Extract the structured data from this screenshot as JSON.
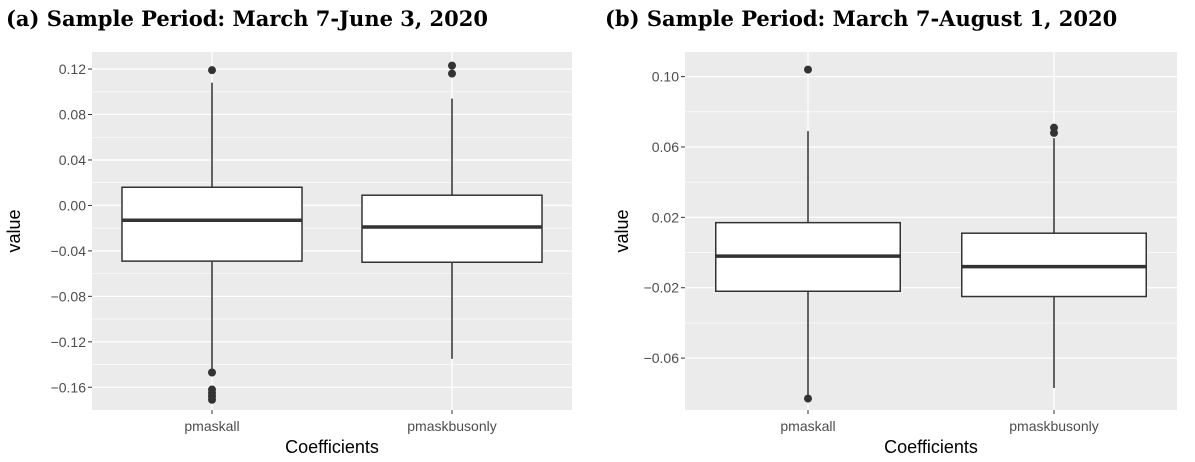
{
  "chart_data": [
    {
      "type": "box",
      "title": "(a) Sample Period: March 7-June 3, 2020",
      "xlabel": "Coefficients",
      "ylabel": "value",
      "ylim": [
        -0.18,
        0.135
      ],
      "yticks": [
        0.12,
        0.08,
        0.04,
        0.0,
        -0.04,
        -0.08,
        -0.12,
        -0.16
      ],
      "ytick_labels": [
        "0.12",
        "0.08",
        "0.04",
        "0.00",
        "−0.04",
        "−0.08",
        "−0.12",
        "−0.16"
      ],
      "categories": [
        "pmaskall",
        "pmaskbusonly"
      ],
      "boxes": [
        {
          "whisker_low": -0.145,
          "q1": -0.049,
          "median": -0.013,
          "q3": 0.016,
          "whisker_high": 0.108,
          "outliers": [
            0.119,
            -0.147,
            -0.162,
            -0.165,
            -0.168,
            -0.171
          ]
        },
        {
          "whisker_low": -0.135,
          "q1": -0.05,
          "median": -0.019,
          "q3": 0.009,
          "whisker_high": 0.094,
          "outliers": [
            0.123,
            0.116
          ]
        }
      ],
      "grid": true
    },
    {
      "type": "box",
      "title": "(b) Sample Period: March 7-August 1, 2020",
      "xlabel": "Coefficients",
      "ylabel": "value",
      "ylim": [
        -0.0895,
        0.114
      ],
      "yticks": [
        0.1,
        0.06,
        0.02,
        -0.02,
        -0.06
      ],
      "ytick_labels": [
        "0.10",
        "0.06",
        "0.02",
        "−0.02",
        "−0.06"
      ],
      "categories": [
        "pmaskall",
        "pmaskbusonly"
      ],
      "boxes": [
        {
          "whisker_low": -0.082,
          "q1": -0.022,
          "median": -0.002,
          "q3": 0.017,
          "whisker_high": 0.069,
          "outliers": [
            0.104,
            -0.083
          ]
        },
        {
          "whisker_low": -0.077,
          "q1": -0.025,
          "median": -0.008,
          "q3": 0.011,
          "whisker_high": 0.065,
          "outliers": [
            0.071,
            0.068
          ]
        }
      ],
      "grid": true
    }
  ]
}
